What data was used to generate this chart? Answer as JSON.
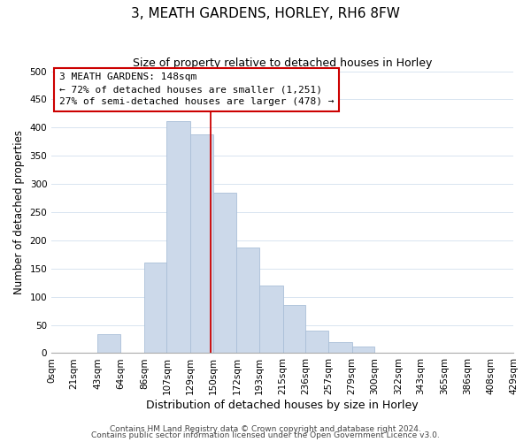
{
  "title": "3, MEATH GARDENS, HORLEY, RH6 8FW",
  "subtitle": "Size of property relative to detached houses in Horley",
  "xlabel": "Distribution of detached houses by size in Horley",
  "ylabel": "Number of detached properties",
  "bar_color": "#ccd9ea",
  "bar_edge_color": "#aabfd8",
  "bin_edges": [
    0,
    21,
    43,
    64,
    86,
    107,
    129,
    150,
    172,
    193,
    215,
    236,
    257,
    279,
    300,
    322,
    343,
    365,
    386,
    408,
    429
  ],
  "bin_labels": [
    "0sqm",
    "21sqm",
    "43sqm",
    "64sqm",
    "86sqm",
    "107sqm",
    "129sqm",
    "150sqm",
    "172sqm",
    "193sqm",
    "215sqm",
    "236sqm",
    "257sqm",
    "279sqm",
    "300sqm",
    "322sqm",
    "343sqm",
    "365sqm",
    "386sqm",
    "408sqm",
    "429sqm"
  ],
  "bar_heights": [
    0,
    0,
    33,
    0,
    160,
    412,
    388,
    285,
    188,
    120,
    85,
    40,
    20,
    12,
    0,
    0,
    0,
    0,
    0,
    0
  ],
  "vline_x": 148,
  "vline_color": "#cc0000",
  "annotation_line1": "3 MEATH GARDENS: 148sqm",
  "annotation_line2": "← 72% of detached houses are smaller (1,251)",
  "annotation_line3": "27% of semi-detached houses are larger (478) →",
  "annotation_box_edge": "#cc0000",
  "annotation_box_face": "white",
  "ylim": [
    0,
    500
  ],
  "xlim": [
    0,
    429
  ],
  "yticks": [
    0,
    50,
    100,
    150,
    200,
    250,
    300,
    350,
    400,
    450,
    500
  ],
  "footer_line1": "Contains HM Land Registry data © Crown copyright and database right 2024.",
  "footer_line2": "Contains public sector information licensed under the Open Government Licence v3.0.",
  "grid_color": "#d8e4f0",
  "title_fontsize": 11,
  "subtitle_fontsize": 9,
  "tick_fontsize": 7.5,
  "ylabel_fontsize": 8.5,
  "xlabel_fontsize": 9,
  "annotation_fontsize": 8,
  "footer_fontsize": 6.5
}
